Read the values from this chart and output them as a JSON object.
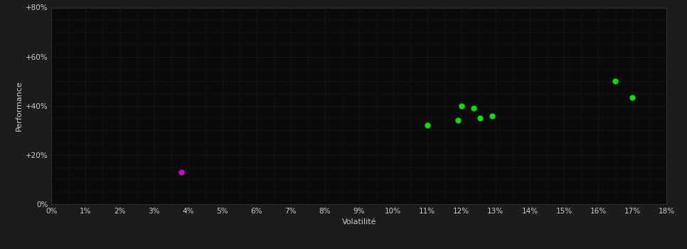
{
  "xlabel": "Volatilité",
  "ylabel": "Performance",
  "background_color": "#1c1c1c",
  "plot_bg_color": "#0a0a0a",
  "grid_color": "#2e2e2e",
  "text_color": "#cccccc",
  "xlim": [
    0,
    0.18
  ],
  "ylim": [
    0,
    0.8
  ],
  "xticks": [
    0.0,
    0.01,
    0.02,
    0.03,
    0.04,
    0.05,
    0.06,
    0.07,
    0.08,
    0.09,
    0.1,
    0.11,
    0.12,
    0.13,
    0.14,
    0.15,
    0.16,
    0.17,
    0.18
  ],
  "yticks": [
    0.0,
    0.2,
    0.4,
    0.6,
    0.8
  ],
  "ytick_labels": [
    "0%",
    "+20%",
    "+40%",
    "+60%",
    "+80%"
  ],
  "green_points": [
    [
      0.11,
      0.32
    ],
    [
      0.119,
      0.34
    ],
    [
      0.12,
      0.4
    ],
    [
      0.1235,
      0.39
    ],
    [
      0.1255,
      0.35
    ],
    [
      0.129,
      0.36
    ],
    [
      0.165,
      0.5
    ],
    [
      0.17,
      0.435
    ]
  ],
  "magenta_points": [
    [
      0.038,
      0.13
    ]
  ],
  "green_color": "#00dd00",
  "magenta_color": "#cc00cc",
  "marker_size": 5
}
